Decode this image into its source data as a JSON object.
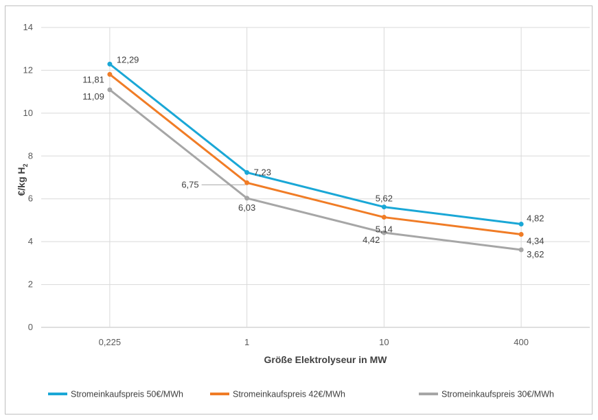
{
  "chart_data": {
    "type": "line",
    "title": "",
    "xlabel": "Größe Elektrolyseur in MW",
    "ylabel": "€/kg H",
    "ylabel_subscript": "2",
    "categories": [
      "0,225",
      "1",
      "10",
      "400"
    ],
    "ylim": [
      0,
      14
    ],
    "yticks": [
      "0",
      "2",
      "4",
      "6",
      "8",
      "10",
      "12",
      "14"
    ],
    "grid": true,
    "legend_position": "bottom",
    "series": [
      {
        "name": "Stromeinkaufspreis 50€/MWh",
        "color": "#1aa7d6",
        "values": [
          12.29,
          7.23,
          5.62,
          4.82
        ],
        "labels": [
          "12,29",
          "7,23",
          "5,62",
          "4,82"
        ]
      },
      {
        "name": "Stromeinkaufspreis 42€/MWh",
        "color": "#f07c26",
        "values": [
          11.81,
          6.75,
          5.14,
          4.34
        ],
        "labels": [
          "11,81",
          "6,75",
          "5,14",
          "4,34"
        ]
      },
      {
        "name": "Stromeinkaufspreis 30€/MWh",
        "color": "#a6a6a6",
        "values": [
          11.09,
          6.03,
          4.42,
          3.62
        ],
        "labels": [
          "11,09",
          "6,03",
          "4,42",
          "3,62"
        ]
      }
    ]
  }
}
